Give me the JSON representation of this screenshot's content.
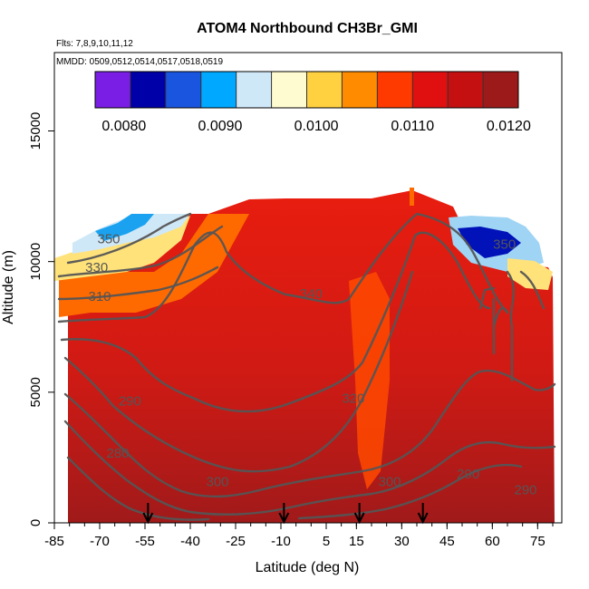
{
  "chart_data": {
    "type": "heatmap",
    "title": "ATOM4 Northbound CH3Br_GMI",
    "flights_label": "Flts: 7,8,9,10,11,12",
    "dates_label": "MMDD: 0509,0512,0514,0517,0518,0519",
    "xlabel": "Latitude (deg N)",
    "ylabel": "Altitude (m)",
    "xlim": [
      -85,
      83
    ],
    "ylim": [
      0,
      18000
    ],
    "x_ticks": [
      -85,
      -70,
      -55,
      -40,
      -25,
      -10,
      5,
      15,
      30,
      45,
      60,
      75
    ],
    "y_ticks": [
      0,
      5000,
      10000,
      15000
    ],
    "colorbar": {
      "min": 0.0077,
      "max": 0.0121,
      "ticks": [
        "0.0080",
        "0.0090",
        "0.0100",
        "0.0110",
        "0.0120"
      ],
      "tick_values": [
        0.008,
        0.009,
        0.01,
        0.011,
        0.012
      ],
      "colors": [
        "#7a1ee6",
        "#0000a8",
        "#1a55e0",
        "#00a8ff",
        "#cfe8f8",
        "#fffbd0",
        "#ffd040",
        "#ff8c00",
        "#ff3a00",
        "#e01010",
        "#c41010",
        "#9c1a1a"
      ]
    },
    "contour_labels": [
      {
        "text": "350",
        "lat": -67,
        "alt": 10700
      },
      {
        "text": "350",
        "lat": 64,
        "alt": 10500
      },
      {
        "text": "330",
        "lat": -71,
        "alt": 9600
      },
      {
        "text": "310",
        "lat": -70,
        "alt": 8500
      },
      {
        "text": "340",
        "lat": 0,
        "alt": 8600
      },
      {
        "text": "320",
        "lat": 14,
        "alt": 4600
      },
      {
        "text": "290",
        "lat": -60,
        "alt": 4500
      },
      {
        "text": "280",
        "lat": -64,
        "alt": 2500
      },
      {
        "text": "300",
        "lat": -31,
        "alt": 1400
      },
      {
        "text": "300",
        "lat": 26,
        "alt": 1400
      },
      {
        "text": "290",
        "lat": 52,
        "alt": 1700
      },
      {
        "text": "290",
        "lat": 71,
        "alt": 1100
      }
    ],
    "markers": [
      -54,
      -9,
      16,
      37
    ],
    "grid": false
  }
}
